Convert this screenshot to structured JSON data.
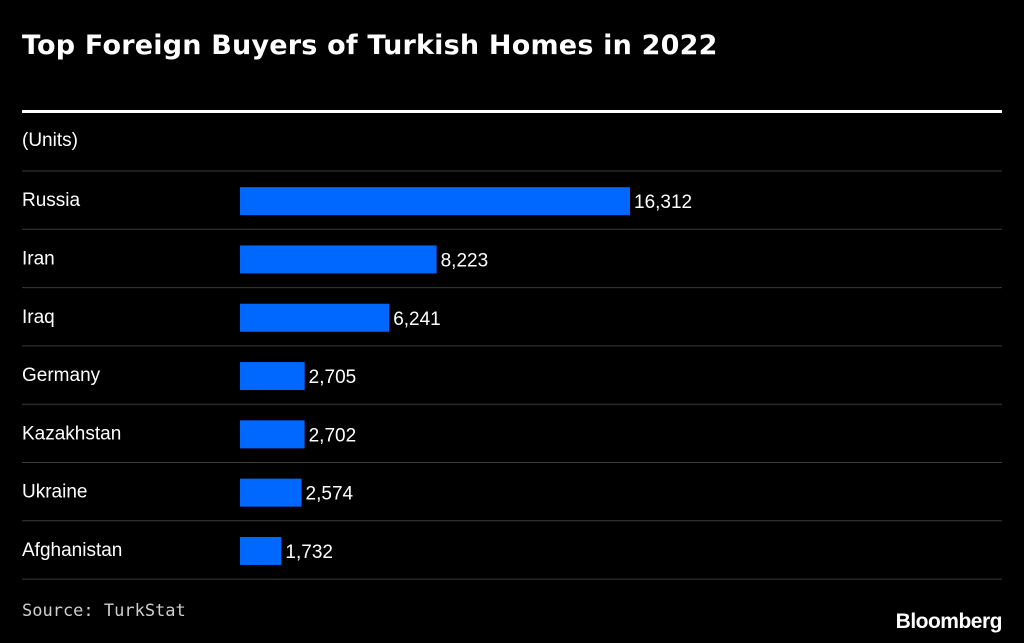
{
  "chart_data": {
    "type": "bar",
    "orientation": "horizontal",
    "title": "Top Foreign Buyers of Turkish Homes in 2022",
    "units_label": "(Units)",
    "categories": [
      "Russia",
      "Iran",
      "Iraq",
      "Germany",
      "Kazakhstan",
      "Ukraine",
      "Afghanistan"
    ],
    "values": [
      16312,
      8223,
      6241,
      2705,
      2702,
      2574,
      1732
    ],
    "value_labels": [
      "16,312",
      "8,223",
      "6,241",
      "2,705",
      "2,702",
      "2,574",
      "1,732"
    ],
    "xlim": [
      0,
      16312
    ],
    "bar_color": "#0068ff",
    "grid": false,
    "legend": "none"
  },
  "footer": {
    "source": "Source: TurkStat",
    "brand": "Bloomberg"
  },
  "colors": {
    "background": "#000000",
    "text": "#ffffff",
    "divider": "#3a3a3a"
  }
}
